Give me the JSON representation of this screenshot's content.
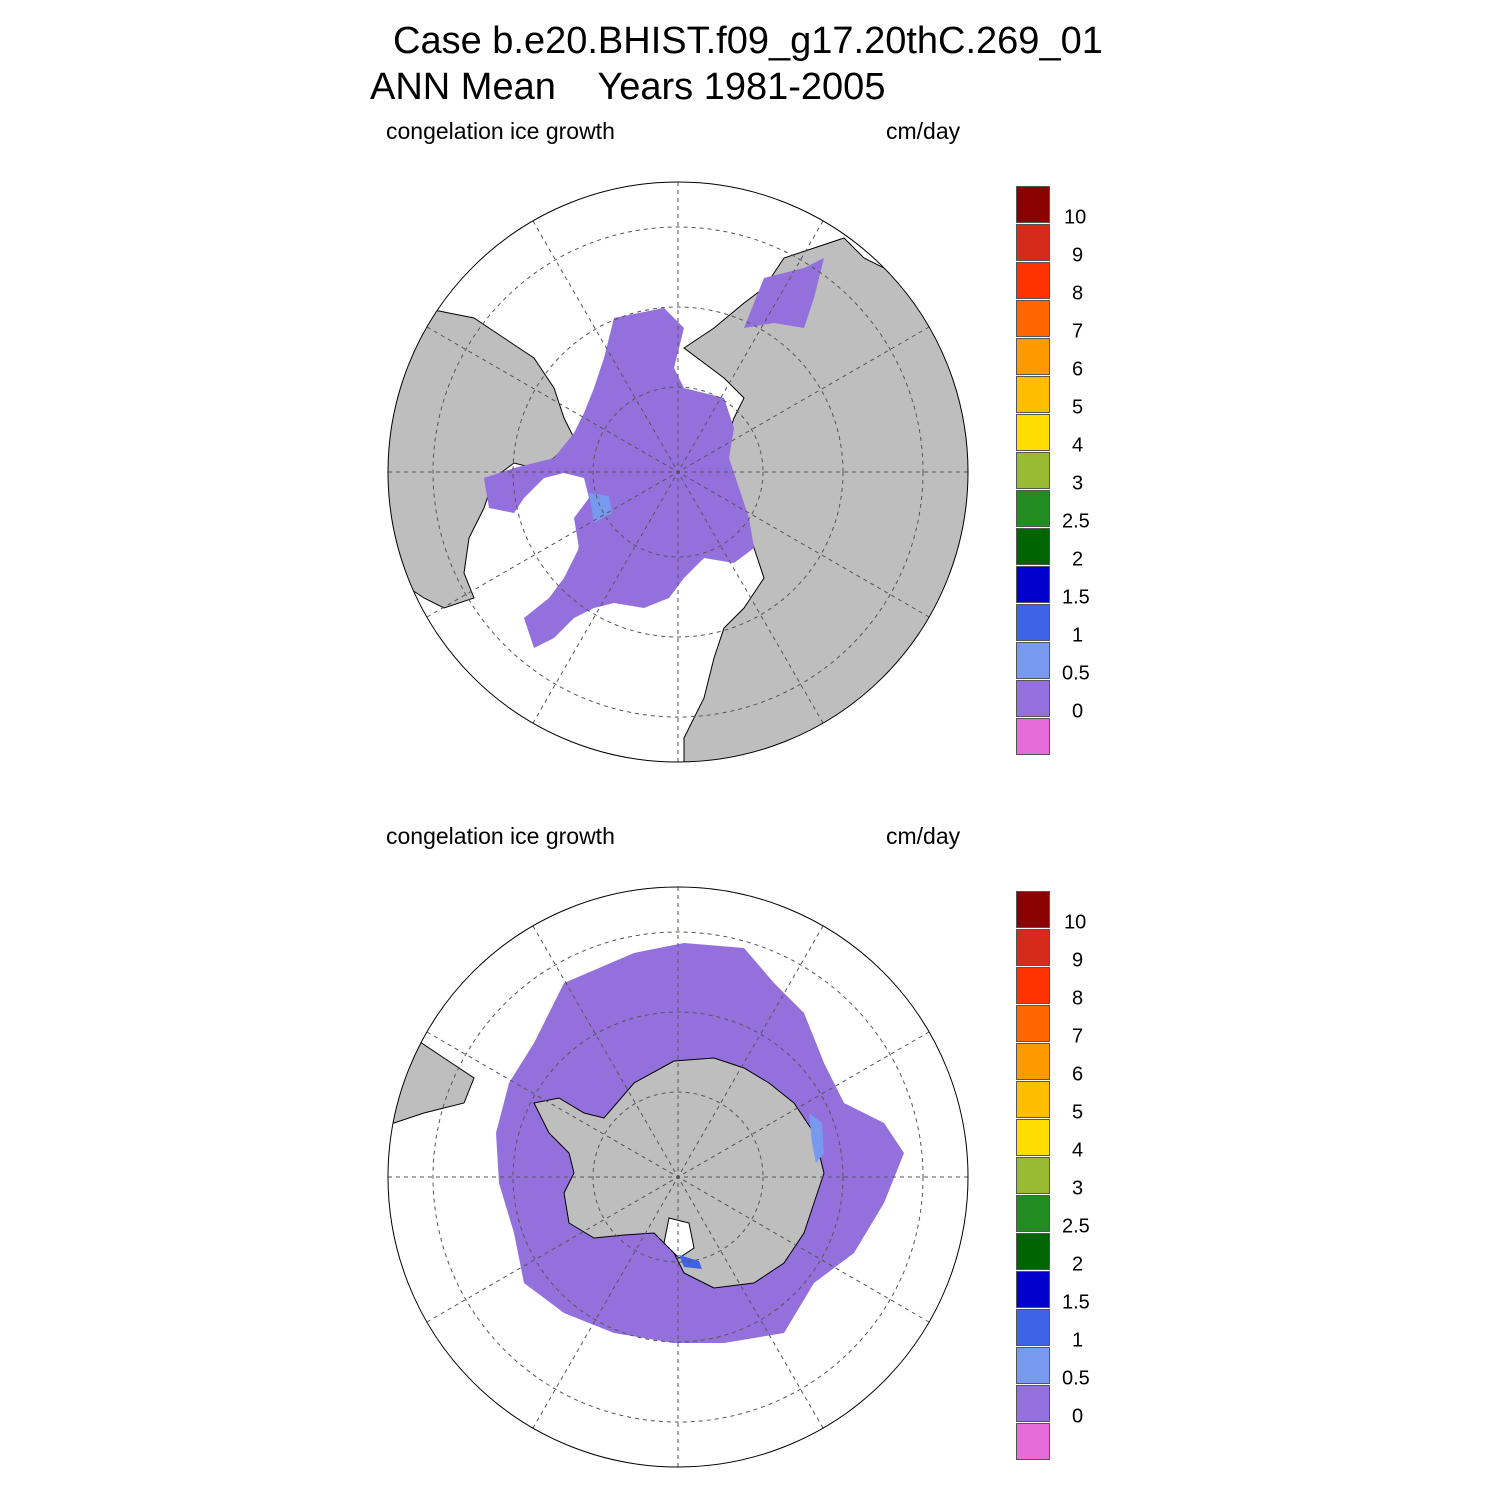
{
  "title": {
    "line1": "Case b.e20.BHIST.f09_g17.20thC.269_01",
    "line2": "ANN Mean    Years 1981-2005"
  },
  "colors": {
    "land": "#bebebe",
    "no_data": "#ffffff",
    "grid": "#555555"
  },
  "colorbar": {
    "levels": [
      "0",
      "0.5",
      "1",
      "1.5",
      "2",
      "2.5",
      "3",
      "4",
      "5",
      "6",
      "7",
      "8",
      "9",
      "10"
    ],
    "colors": [
      "#e66cd9",
      "#9370db",
      "#7799ee",
      "#3f63e6",
      "#0000cd",
      "#006400",
      "#228b22",
      "#99bb33",
      "#ffdd00",
      "#ffbf00",
      "#ff9900",
      "#ff6600",
      "#ff3300",
      "#d62a1a",
      "#8b0000"
    ]
  },
  "panels": [
    {
      "hemisphere": "north",
      "variable_label": "congelation ice growth",
      "units_label": "cm/day"
    },
    {
      "hemisphere": "south",
      "variable_label": "congelation ice growth",
      "units_label": "cm/day"
    }
  ]
}
